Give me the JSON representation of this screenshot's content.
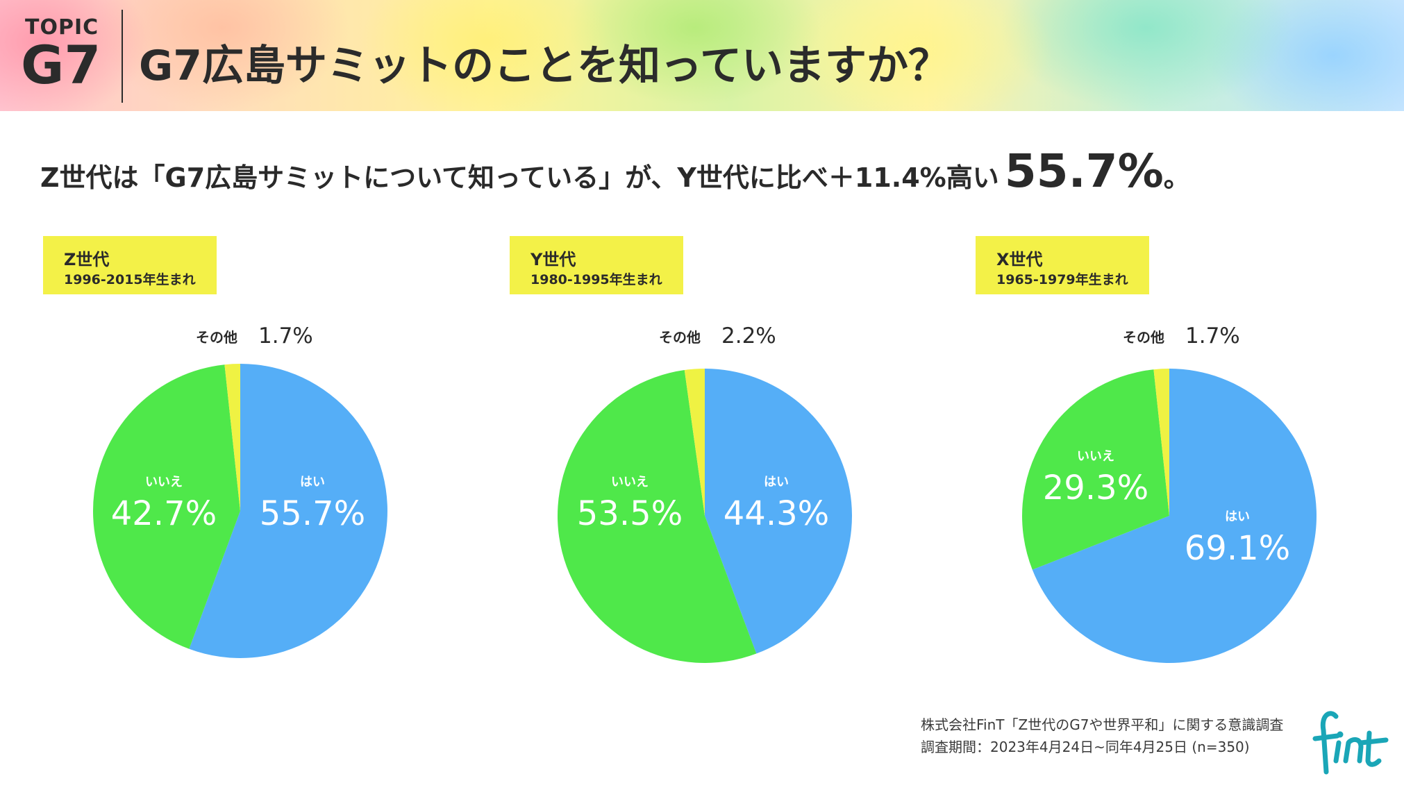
{
  "header": {
    "topic_label": "TOPIC",
    "topic_code": "G7",
    "title": "G7広島サミットのことを知っていますか？"
  },
  "headline": {
    "lead": "Z世代は「G7広島サミットについて知っている」が、Y世代に比べ＋11.4%高い",
    "big": "55.7%",
    "tail": "。"
  },
  "colors": {
    "yes": "#55aef7",
    "no": "#4fe84a",
    "other": "#eff243",
    "label_box": "#f3f148",
    "logo": "#1aa6b7"
  },
  "chart_data": [
    {
      "type": "pie",
      "name": "Z世代",
      "years": "1996-2015年生まれ",
      "slices": [
        {
          "label": "はい",
          "value": 55.7,
          "display": "55.7%"
        },
        {
          "label": "いいえ",
          "value": 42.7,
          "display": "42.7%"
        },
        {
          "label": "その他",
          "value": 1.7,
          "display": "1.7%"
        }
      ]
    },
    {
      "type": "pie",
      "name": "Y世代",
      "years": "1980-1995年生まれ",
      "slices": [
        {
          "label": "はい",
          "value": 44.3,
          "display": "44.3%"
        },
        {
          "label": "いいえ",
          "value": 53.5,
          "display": "53.5%"
        },
        {
          "label": "その他",
          "value": 2.2,
          "display": "2.2%"
        }
      ]
    },
    {
      "type": "pie",
      "name": "X世代",
      "years": "1965-1979年生まれ",
      "slices": [
        {
          "label": "はい",
          "value": 69.1,
          "display": "69.1%"
        },
        {
          "label": "いいえ",
          "value": 29.3,
          "display": "29.3%"
        },
        {
          "label": "その他",
          "value": 1.7,
          "display": "1.7%"
        }
      ]
    }
  ],
  "footer": {
    "source_line1": "株式会社FinT「Z世代のG7や世界平和」に関する意識調査",
    "source_line2": "調査期間：2023年4月24日~同年4月25日 (n=350)",
    "logo_text": "fint"
  }
}
